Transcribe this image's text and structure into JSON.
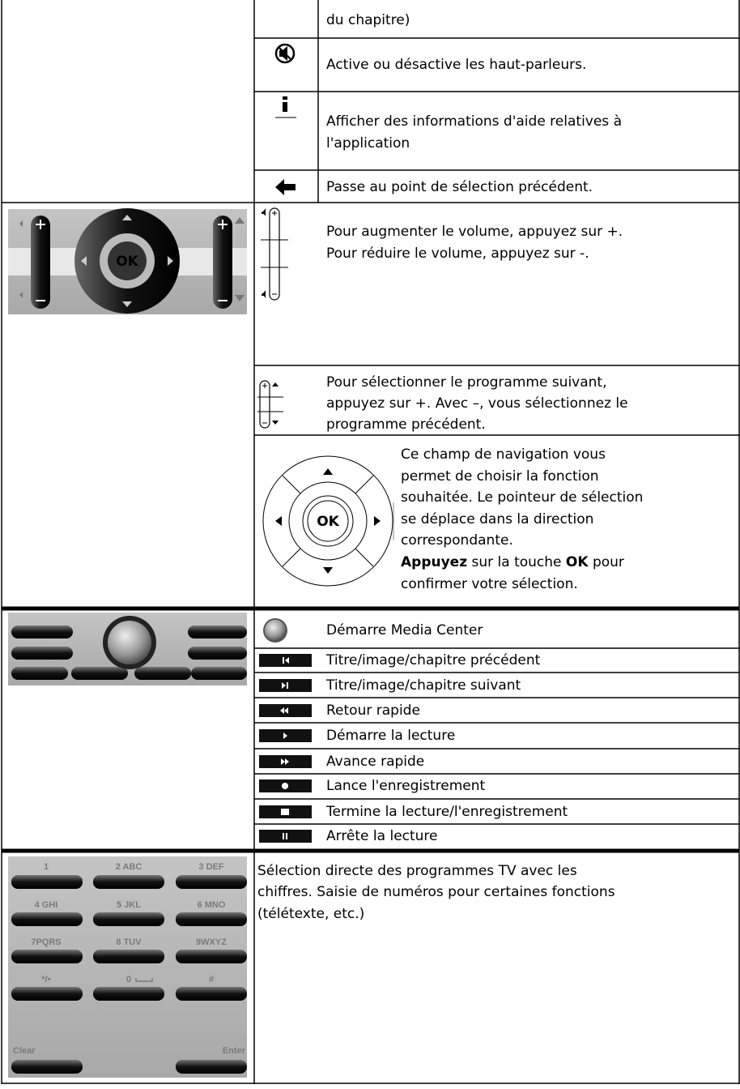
{
  "section_1": {
    "rows": [
      {
        "lines": [
          "du chapitre)"
        ]
      },
      {
        "lines": [
          "Active ou désactive les haut-parleurs."
        ]
      },
      {
        "lines": [
          "Afficher des informations d'aide relatives à",
          "l'application"
        ]
      },
      {
        "lines": [
          "Passe au point de sélection précédent."
        ]
      }
    ]
  },
  "section_2": {
    "remote_key": "OK",
    "rows": [
      {
        "lines": [
          "Pour augmenter le volume, appuyez sur +.",
          "Pour réduire le volume, appuyez sur -."
        ]
      },
      {
        "lines": [
          "Pour sélectionner le programme suivant,",
          "appuyez sur +. Avec –, vous sélectionnez le",
          "programme précédent."
        ]
      },
      {
        "icon_key": "OK",
        "lines": [
          "Ce champ de navigation vous",
          "permet de choisir la fonction",
          "souhaitée. Le pointeur de sélection",
          "se déplace dans la direction",
          "correspondante."
        ],
        "emphasis": [
          "Appuyez",
          "sur la touche",
          "OK",
          "pour"
        ],
        "last_line": "confirmer votre sélection."
      }
    ]
  },
  "section_3": {
    "rows": [
      {
        "lines": [
          "Démarre Media Center"
        ]
      },
      {
        "lines": [
          "Titre/image/chapitre précédent"
        ]
      },
      {
        "lines": [
          "Titre/image/chapitre suivant"
        ]
      },
      {
        "lines": [
          "Retour rapide"
        ]
      },
      {
        "lines": [
          "Démarre la lecture"
        ]
      },
      {
        "lines": [
          "Avance rapide"
        ]
      },
      {
        "lines": [
          "Lance l'enregistrement"
        ]
      },
      {
        "lines": [
          "Termine la lecture/l'enregistrement"
        ]
      },
      {
        "lines": [
          "Arrête la lecture"
        ]
      }
    ]
  },
  "section_4": {
    "keys": [
      "1",
      "2 ABC",
      "3 DEF",
      "4 GHI",
      "5 JKL",
      "6 MNO",
      "7PQRS",
      "8 TUV",
      "9WXYZ",
      "*/•",
      "0",
      "#",
      "Clear",
      "Enter"
    ],
    "lines": [
      "Sélection directe des programmes TV avec les",
      "chiffres. Saisie de numéros pour certaines fonctions",
      "(télétexte, etc.)"
    ]
  }
}
